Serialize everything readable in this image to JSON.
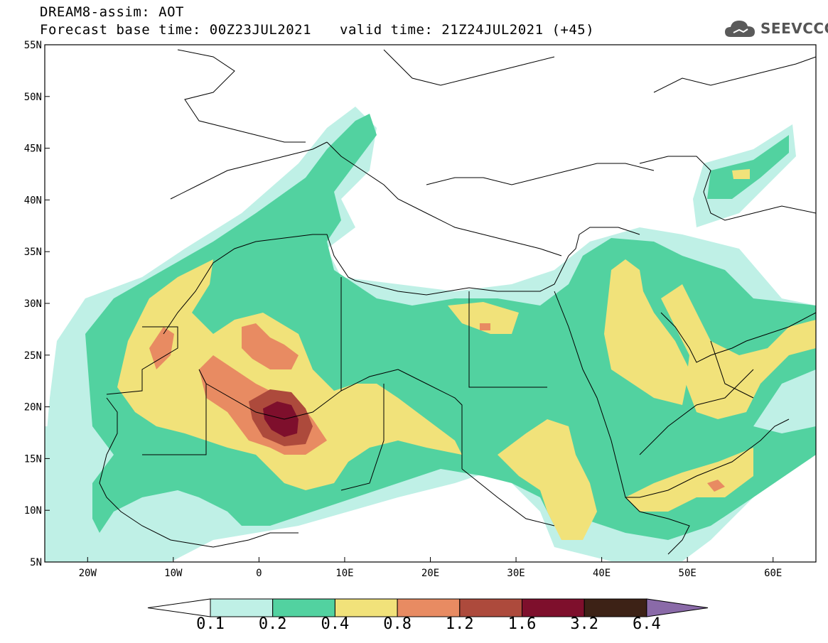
{
  "header": {
    "title": "DREAM8-assim: AOT",
    "base_time": "Forecast base time: 00Z23JUL2021",
    "valid_time": "valid time: 21Z24JUL2021 (+45)"
  },
  "logo": {
    "text": "SEEVCCC",
    "icon": "cloud-icon",
    "color": "#555555"
  },
  "map": {
    "lon_range": [
      -25,
      65
    ],
    "lat_range": [
      5,
      55
    ],
    "lat_labels": [
      "55N",
      "50N",
      "45N",
      "40N",
      "35N",
      "30N",
      "25N",
      "20N",
      "15N",
      "10N",
      "5N"
    ],
    "lon_labels": [
      "20W",
      "10W",
      "0",
      "10E",
      "20E",
      "30E",
      "40E",
      "50E",
      "60E"
    ]
  },
  "colorbar": {
    "labels": [
      "0.1",
      "0.2",
      "0.4",
      "0.8",
      "1.2",
      "1.6",
      "3.2",
      "6.4"
    ],
    "colors": [
      "#bff0e6",
      "#52d2a0",
      "#f1e27a",
      "#e88b62",
      "#ad4a3c",
      "#7e0f2c",
      "#3d2216",
      "#8a6aa8"
    ]
  }
}
